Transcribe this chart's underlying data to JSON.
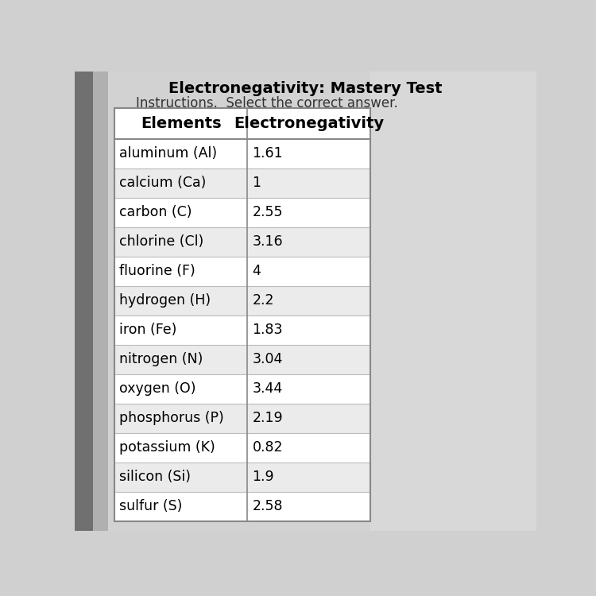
{
  "title_line1": "Electronegativity: Mastery Test",
  "title_line2": "Instructions.  Select the correct answer.",
  "col1_header": "Elements",
  "col2_header": "Electronegativity",
  "rows": [
    [
      "aluminum (Al)",
      "1.61"
    ],
    [
      "calcium (Ca)",
      "1"
    ],
    [
      "carbon (C)",
      "2.55"
    ],
    [
      "chlorine (Cl)",
      "3.16"
    ],
    [
      "fluorine (F)",
      "4"
    ],
    [
      "hydrogen (H)",
      "2.2"
    ],
    [
      "iron (Fe)",
      "1.83"
    ],
    [
      "nitrogen (N)",
      "3.04"
    ],
    [
      "oxygen (O)",
      "3.44"
    ],
    [
      "phosphorus (P)",
      "2.19"
    ],
    [
      "potassium (K)",
      "0.82"
    ],
    [
      "silicon (Si)",
      "1.9"
    ],
    [
      "sulfur (S)",
      "2.58"
    ]
  ],
  "bg_left": "#a0a0a0",
  "bg_main": "#d0d0d0",
  "bg_right": "#c8c8c8",
  "header_bg": "#ffffff",
  "row_bg": "#ffffff",
  "row_alt_bg": "#ebebeb",
  "border_color": "#aaaaaa",
  "title_color": "#000000",
  "header_font_size": 14,
  "row_font_size": 12.5,
  "title_font_size": 14,
  "subtitle_font_size": 12
}
